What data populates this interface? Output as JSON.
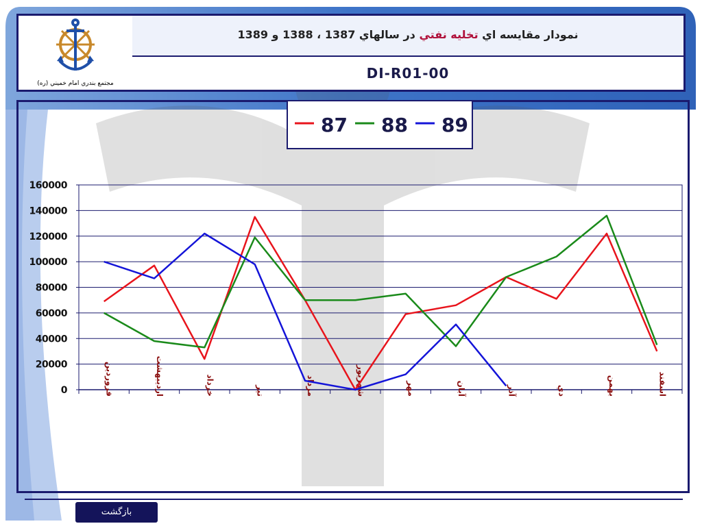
{
  "header": {
    "title_parts": [
      "نمودار مقايسه اي ",
      "تخليه نفتي",
      " در سالهاي 1387 ، 1388 و 1389"
    ],
    "code": "DI-R01-00",
    "logo_caption": "مجتمع بندري امام خميني (ره)"
  },
  "footer": {
    "back_label": "بازگشت"
  },
  "colors": {
    "frame": "#1a1a6e",
    "s87": "#e8141c",
    "s88": "#1a8a1a",
    "s89": "#1414d8",
    "xlabel": "#8b1010"
  },
  "chart_data": {
    "type": "line",
    "categories": [
      "فروردين",
      "ارديبهشت",
      "خرداد",
      "تير",
      "مرداد",
      "شهريور",
      "مهر",
      "آبان",
      "آذر",
      "دي",
      "بهمن",
      "اسفند"
    ],
    "ylim": [
      0,
      160000
    ],
    "yticks": [
      0,
      20000,
      40000,
      60000,
      80000,
      100000,
      120000,
      140000,
      160000
    ],
    "ytick_labels": [
      "0",
      "20000",
      "40000",
      "60000",
      "80000",
      "100000",
      "120000",
      "140000",
      "160000"
    ],
    "grid": true,
    "legend": "top-center",
    "series": [
      {
        "name": "87",
        "color": "#e8141c",
        "values": [
          69000,
          97000,
          24000,
          135000,
          70000,
          0,
          59000,
          66000,
          88000,
          71000,
          122000,
          30000
        ]
      },
      {
        "name": "88",
        "color": "#1a8a1a",
        "values": [
          60000,
          38000,
          33000,
          119000,
          70000,
          70000,
          75000,
          34000,
          88000,
          104000,
          136000,
          35000
        ]
      },
      {
        "name": "89",
        "color": "#1414d8",
        "values": [
          100000,
          87000,
          122000,
          98000,
          7000,
          0,
          12000,
          51000,
          3000,
          null,
          null,
          null
        ]
      }
    ]
  }
}
